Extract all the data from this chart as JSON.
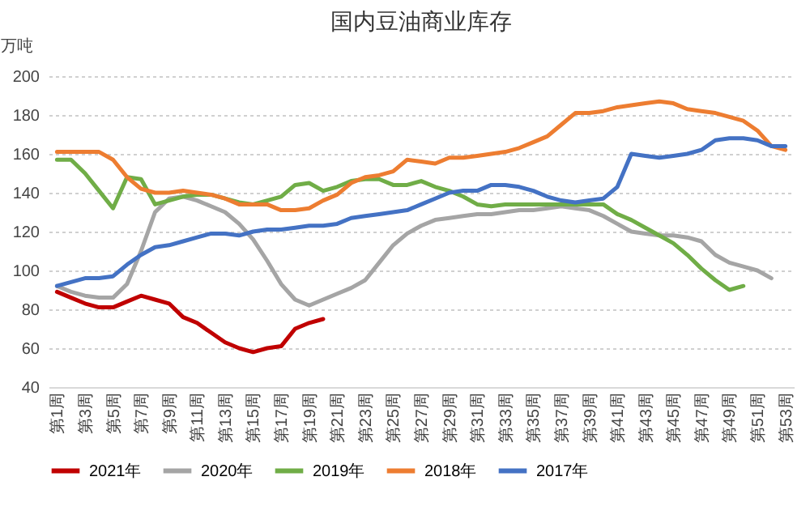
{
  "chart_data": {
    "type": "line",
    "title": "国内豆油商业库存",
    "ylabel": "万吨",
    "categories": [
      "第1周",
      null,
      "第3周",
      null,
      "第5周",
      null,
      "第7周",
      null,
      "第9周",
      null,
      "第11周",
      null,
      "第13周",
      null,
      "第15周",
      null,
      "第17周",
      null,
      "第19周",
      null,
      "第21周",
      null,
      "第23周",
      null,
      "第25周",
      null,
      "第27周",
      null,
      "第29周",
      null,
      "第31周",
      null,
      "第33周",
      null,
      "第35周",
      null,
      "第37周",
      null,
      "第39周",
      null,
      "第41周",
      null,
      "第43周",
      null,
      "第45周",
      null,
      "第47周",
      null,
      "第49周",
      null,
      "第51周",
      null,
      "第53周"
    ],
    "ylim": [
      40,
      200
    ],
    "yticks": [
      40,
      60,
      80,
      100,
      120,
      140,
      160,
      180,
      200
    ],
    "grid": "y",
    "legend": "bottom",
    "line_style": "solid",
    "marker": "none",
    "series": [
      {
        "name": "2021年",
        "color": "#c00000",
        "values": [
          89,
          86,
          83,
          81,
          81,
          84,
          87,
          85,
          83,
          76,
          73,
          68,
          63,
          60,
          58,
          60,
          61,
          70,
          73,
          75,
          null,
          null,
          null,
          null,
          null,
          null,
          null,
          null,
          null,
          null,
          null,
          null,
          null,
          null,
          null,
          null,
          null,
          null,
          null,
          null,
          null,
          null,
          null,
          null,
          null,
          null,
          null,
          null,
          null,
          null,
          null,
          null,
          null
        ]
      },
      {
        "name": "2020年",
        "color": "#a5a5a5",
        "values": [
          92,
          89,
          87,
          86,
          86,
          93,
          110,
          130,
          137,
          138,
          136,
          133,
          130,
          124,
          116,
          105,
          93,
          85,
          82,
          85,
          88,
          91,
          95,
          104,
          113,
          119,
          123,
          126,
          127,
          128,
          129,
          129,
          130,
          131,
          131,
          132,
          133,
          132,
          131,
          128,
          124,
          120,
          119,
          118,
          118,
          117,
          115,
          108,
          104,
          102,
          100,
          96,
          null
        ]
      },
      {
        "name": "2019年",
        "color": "#70ad47",
        "values": [
          157,
          157,
          150,
          141,
          132,
          148,
          147,
          134,
          136,
          138,
          139,
          139,
          137,
          135,
          134,
          136,
          138,
          144,
          145,
          141,
          143,
          146,
          147,
          147,
          144,
          144,
          146,
          143,
          141,
          138,
          134,
          133,
          134,
          134,
          134,
          134,
          134,
          134,
          134,
          134,
          129,
          126,
          122,
          118,
          114,
          108,
          101,
          95,
          90,
          92,
          null,
          null,
          null
        ]
      },
      {
        "name": "2018年",
        "color": "#ed7d31",
        "values": [
          161,
          161,
          161,
          161,
          157,
          148,
          142,
          140,
          140,
          141,
          140,
          139,
          137,
          134,
          134,
          134,
          131,
          131,
          132,
          136,
          139,
          145,
          148,
          149,
          151,
          157,
          156,
          155,
          158,
          158,
          159,
          160,
          161,
          163,
          166,
          169,
          175,
          181,
          181,
          182,
          184,
          185,
          186,
          187,
          186,
          183,
          182,
          181,
          179,
          177,
          172,
          164,
          162
        ]
      },
      {
        "name": "2017年",
        "color": "#4472c4",
        "values": [
          92,
          94,
          96,
          96,
          97,
          103,
          108,
          112,
          113,
          115,
          117,
          119,
          119,
          118,
          120,
          121,
          121,
          122,
          123,
          123,
          124,
          127,
          128,
          129,
          130,
          131,
          134,
          137,
          140,
          141,
          141,
          144,
          144,
          143,
          141,
          138,
          136,
          135,
          136,
          137,
          143,
          160,
          159,
          158,
          159,
          160,
          162,
          167,
          168,
          168,
          167,
          164,
          164
        ]
      }
    ]
  }
}
